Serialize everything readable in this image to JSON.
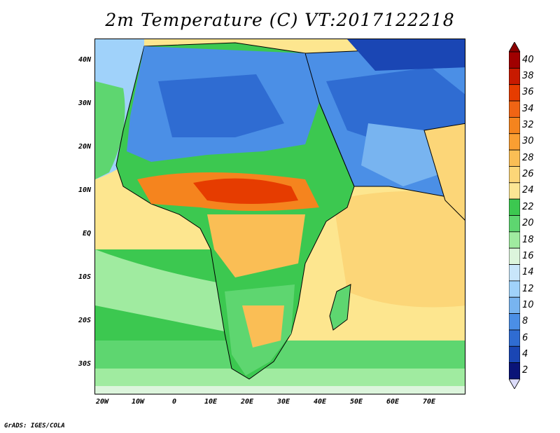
{
  "title": "2m Temperature (C) VT:2017122218",
  "credit": "GrADS: IGES/COLA",
  "map": {
    "lat_labels": [
      "40N",
      "30N",
      "20N",
      "10N",
      "EQ",
      "10S",
      "20S",
      "30S"
    ],
    "lon_labels": [
      "20W",
      "10W",
      "0",
      "10E",
      "20E",
      "30E",
      "40E",
      "50E",
      "60E",
      "70E"
    ]
  },
  "colorbar": {
    "labels": [
      "40",
      "38",
      "36",
      "34",
      "32",
      "30",
      "28",
      "26",
      "24",
      "22",
      "20",
      "18",
      "16",
      "14",
      "12",
      "10",
      "8",
      "6",
      "4",
      "2"
    ],
    "colors": [
      "#a00000",
      "#c81a00",
      "#e63c00",
      "#f06414",
      "#f5841e",
      "#fa9e32",
      "#fabe55",
      "#fcd678",
      "#fce694",
      "#3cc850",
      "#5ed670",
      "#a0eba0",
      "#dcf5dc",
      "#c8e6fa",
      "#a0d2fa",
      "#78b4f0",
      "#4b8fe6",
      "#2f6cd2",
      "#1a46b4",
      "#0a1478"
    ],
    "under_color": "#dcdcfa",
    "over_color": "#8c0000"
  }
}
